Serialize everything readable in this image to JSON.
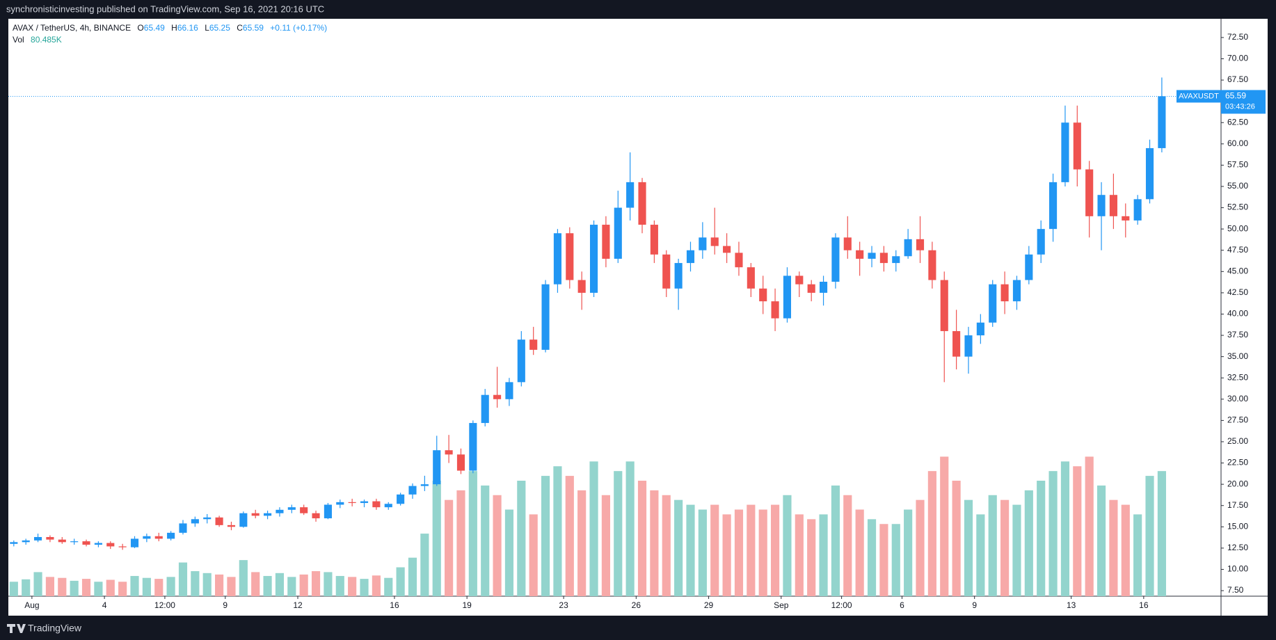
{
  "header": {
    "publisher": "synchronisticinvesting published on TradingView.com, Sep 16, 2021 20:16 UTC"
  },
  "footer": {
    "brand": "TradingView"
  },
  "chart_data": {
    "type": "candlestick",
    "title": "AVAX / TetherUS, 4h, BINANCE",
    "legend": {
      "open_label": "O",
      "open": 65.49,
      "high_label": "H",
      "high": 66.16,
      "low_label": "L",
      "low": 65.25,
      "close_label": "C",
      "close": 65.59,
      "change": "+0.11 (+0.17%)",
      "volume_label": "Vol",
      "volume": {
        "value": 80485,
        "label": "80.485K"
      }
    },
    "symbol": "AVAXUSDT",
    "last_price": 65.59,
    "countdown": "03:43:26",
    "up_color": "#2196f3",
    "down_color": "#ef5350",
    "volume_up_color": "#93d4cd",
    "volume_down_color": "#f7a9a8",
    "xlim": [
      -0.45,
      99.9
    ],
    "xticks": [
      {
        "value": 1.5,
        "label": "Aug"
      },
      {
        "value": 7.5,
        "label": "4"
      },
      {
        "value": 12.5,
        "label": "12:00"
      },
      {
        "value": 17.5,
        "label": "9"
      },
      {
        "value": 23.5,
        "label": "12"
      },
      {
        "value": 31.5,
        "label": "16"
      },
      {
        "value": 37.5,
        "label": "19"
      },
      {
        "value": 45.5,
        "label": "23"
      },
      {
        "value": 51.5,
        "label": "26"
      },
      {
        "value": 57.5,
        "label": "29"
      },
      {
        "value": 63.5,
        "label": "Sep"
      },
      {
        "value": 68.5,
        "label": "12:00"
      },
      {
        "value": 73.5,
        "label": "6"
      },
      {
        "value": 79.5,
        "label": "9"
      },
      {
        "value": 87.5,
        "label": "13"
      },
      {
        "value": 93.5,
        "label": "16"
      }
    ],
    "ylim": [
      6.85,
      74.7
    ],
    "yticks": [
      {
        "value": 7.5,
        "label": "7.50"
      },
      {
        "value": 10,
        "label": "10.00"
      },
      {
        "value": 12.5,
        "label": "12.50"
      },
      {
        "value": 15,
        "label": "15.00"
      },
      {
        "value": 17.5,
        "label": "17.50"
      },
      {
        "value": 20,
        "label": "20.00"
      },
      {
        "value": 22.5,
        "label": "22.50"
      },
      {
        "value": 25,
        "label": "25.00"
      },
      {
        "value": 27.5,
        "label": "27.50"
      },
      {
        "value": 30,
        "label": "30.00"
      },
      {
        "value": 32.5,
        "label": "32.50"
      },
      {
        "value": 35,
        "label": "35.00"
      },
      {
        "value": 37.5,
        "label": "37.50"
      },
      {
        "value": 40,
        "label": "40.00"
      },
      {
        "value": 42.5,
        "label": "42.50"
      },
      {
        "value": 45,
        "label": "45.00"
      },
      {
        "value": 47.5,
        "label": "47.50"
      },
      {
        "value": 50,
        "label": "50.00"
      },
      {
        "value": 52.5,
        "label": "52.50"
      },
      {
        "value": 55,
        "label": "55.00"
      },
      {
        "value": 57.5,
        "label": "57.50"
      },
      {
        "value": 60,
        "label": "60.00"
      },
      {
        "value": 62.5,
        "label": "62.50"
      },
      {
        "value": 65,
        "label": "65.00"
      },
      {
        "value": 67.5,
        "label": "67.50"
      },
      {
        "value": 70,
        "label": "70.00"
      },
      {
        "value": 72.5,
        "label": "72.50"
      }
    ],
    "volume_lim": [
      0,
      12000
    ],
    "open": [
      13.0,
      13.2,
      13.4,
      13.8,
      13.5,
      13.2,
      13.3,
      12.9,
      13.1,
      12.7,
      12.6,
      13.6,
      13.9,
      13.6,
      14.3,
      15.4,
      15.9,
      16.1,
      15.2,
      15.0,
      16.6,
      16.3,
      16.6,
      17.0,
      17.3,
      16.6,
      16.0,
      17.6,
      17.9,
      17.8,
      18.0,
      17.3,
      17.7,
      18.8,
      19.8,
      20.0,
      24.0,
      23.5,
      21.6,
      27.2,
      30.5,
      30.0,
      32.0,
      37.0,
      35.8,
      43.5,
      49.5,
      44.0,
      42.5,
      50.5,
      46.5,
      52.5,
      55.5,
      50.5,
      47.0,
      43.0,
      46.0,
      47.5,
      49.0,
      48.0,
      47.2,
      45.5,
      43.0,
      41.5,
      39.5,
      44.5,
      43.5,
      42.5,
      43.8,
      49.0,
      47.5,
      46.5,
      47.2,
      46.0,
      46.8,
      48.8,
      47.5,
      44.0,
      38.0,
      35.0,
      37.5,
      39.0,
      43.5,
      41.5,
      44.0,
      47.0,
      50.0,
      55.5,
      62.5,
      57.0,
      51.5,
      54.0,
      51.5,
      51.0,
      53.5,
      59.5
    ],
    "high": [
      13.4,
      13.6,
      14.2,
      14.0,
      13.8,
      13.6,
      13.5,
      13.3,
      13.3,
      13.0,
      13.9,
      14.2,
      14.3,
      14.5,
      15.8,
      16.2,
      16.5,
      16.3,
      15.6,
      16.8,
      17.0,
      16.9,
      17.3,
      17.6,
      17.6,
      16.9,
      17.8,
      18.2,
      18.3,
      18.2,
      18.3,
      17.9,
      19.0,
      20.1,
      21.0,
      25.7,
      25.8,
      24.2,
      27.5,
      31.2,
      33.8,
      32.5,
      38.0,
      38.5,
      44.0,
      50.0,
      50.2,
      45.0,
      51.0,
      51.5,
      54.5,
      59.0,
      56.0,
      51.0,
      47.5,
      46.5,
      48.5,
      50.8,
      52.5,
      49.5,
      48.5,
      46.0,
      44.5,
      43.0,
      45.5,
      45.0,
      44.0,
      44.5,
      49.5,
      51.5,
      48.5,
      48.0,
      48.0,
      47.5,
      50.0,
      51.5,
      48.5,
      45.0,
      40.5,
      38.5,
      40.0,
      44.0,
      45.0,
      44.5,
      48.0,
      51.0,
      56.5,
      64.5,
      64.5,
      58.0,
      55.5,
      56.5,
      53.0,
      54.0,
      60.5,
      67.8
    ],
    "low": [
      12.7,
      12.9,
      13.2,
      13.2,
      13.0,
      12.9,
      12.7,
      12.6,
      12.4,
      12.3,
      12.5,
      13.2,
      13.3,
      13.4,
      14.1,
      15.0,
      15.4,
      15.0,
      14.6,
      14.9,
      16.0,
      15.9,
      16.2,
      16.6,
      16.4,
      15.6,
      15.9,
      17.2,
      17.4,
      17.3,
      17.0,
      17.0,
      17.5,
      18.3,
      19.2,
      19.8,
      22.5,
      21.2,
      21.3,
      26.8,
      29.0,
      29.2,
      31.5,
      35.2,
      35.5,
      42.5,
      43.0,
      40.5,
      42.0,
      45.5,
      46.0,
      51.0,
      49.5,
      46.0,
      42.0,
      40.5,
      45.0,
      46.5,
      47.0,
      46.0,
      44.5,
      42.0,
      40.0,
      38.0,
      39.0,
      42.0,
      41.5,
      41.0,
      43.0,
      46.5,
      44.5,
      45.5,
      45.0,
      45.0,
      46.5,
      46.0,
      43.0,
      32.0,
      33.5,
      33.0,
      36.5,
      38.5,
      40.0,
      40.5,
      43.5,
      46.0,
      48.5,
      55.0,
      55.0,
      49.0,
      47.5,
      50.0,
      49.0,
      50.5,
      53.0,
      59.0
    ],
    "close": [
      13.2,
      13.4,
      13.8,
      13.5,
      13.2,
      13.3,
      12.9,
      13.1,
      12.7,
      12.6,
      13.6,
      13.9,
      13.6,
      14.3,
      15.4,
      15.9,
      16.1,
      15.2,
      15.0,
      16.6,
      16.3,
      16.6,
      17.0,
      17.3,
      16.6,
      16.0,
      17.6,
      17.9,
      17.8,
      18.0,
      17.3,
      17.7,
      18.8,
      19.8,
      20.0,
      24.0,
      23.5,
      21.6,
      27.2,
      30.5,
      30.0,
      32.0,
      37.0,
      35.8,
      43.5,
      49.5,
      44.0,
      42.5,
      50.5,
      46.5,
      52.5,
      55.5,
      50.5,
      47.0,
      43.0,
      46.0,
      47.5,
      49.0,
      48.0,
      47.2,
      45.5,
      43.0,
      41.5,
      39.5,
      44.5,
      43.5,
      42.5,
      43.8,
      49.0,
      47.5,
      46.5,
      47.2,
      46.0,
      46.8,
      48.8,
      47.5,
      44.0,
      38.0,
      35.0,
      37.5,
      39.0,
      43.5,
      41.5,
      44.0,
      47.0,
      50.0,
      55.5,
      62.5,
      57.0,
      51.5,
      54.0,
      51.5,
      51.0,
      53.5,
      59.5,
      65.59
    ],
    "volume": [
      300,
      350,
      500,
      400,
      380,
      320,
      360,
      300,
      340,
      300,
      420,
      380,
      360,
      400,
      700,
      520,
      480,
      450,
      400,
      750,
      500,
      420,
      480,
      400,
      450,
      520,
      500,
      420,
      400,
      360,
      430,
      380,
      600,
      800,
      1300,
      2400,
      2000,
      2200,
      2600,
      2300,
      2100,
      1800,
      2400,
      1700,
      2500,
      2700,
      2500,
      2200,
      2800,
      2100,
      2600,
      2800,
      2400,
      2200,
      2100,
      2000,
      1900,
      1800,
      1900,
      1700,
      1800,
      1900,
      1800,
      1900,
      2100,
      1700,
      1600,
      1700,
      2300,
      2100,
      1800,
      1600,
      1500,
      1500,
      1800,
      2000,
      2600,
      2900,
      2400,
      2000,
      1700,
      2100,
      2000,
      1900,
      2200,
      2400,
      2600,
      2800,
      2700,
      2900,
      2300,
      2000,
      1900,
      1700,
      2500,
      2600
    ]
  }
}
